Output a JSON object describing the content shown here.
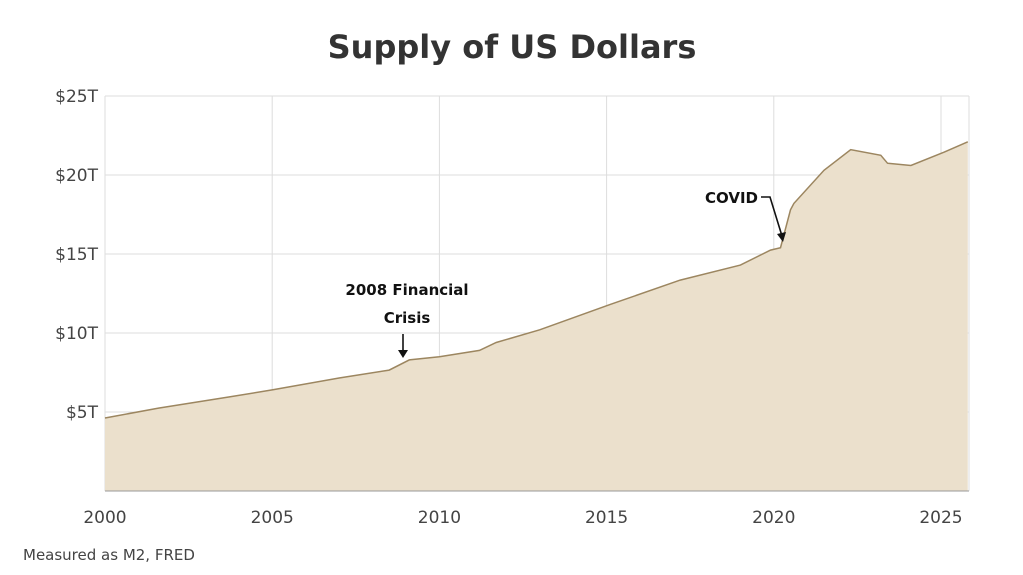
{
  "chart_data": {
    "type": "area",
    "title": "Supply of US Dollars",
    "source_note": "Measured as M2, FRED",
    "xlabel": "",
    "ylabel": "",
    "xlim": [
      2000,
      2025.8
    ],
    "ylim": [
      0,
      25
    ],
    "grid": true,
    "x_ticks": [
      2000,
      2005,
      2010,
      2015,
      2020,
      2025
    ],
    "x_tick_labels": [
      "2000",
      "2005",
      "2010",
      "2015",
      "2020",
      "2025"
    ],
    "y_ticks": [
      5,
      10,
      15,
      20,
      25
    ],
    "y_tick_labels": [
      "$5T",
      "$10T",
      "$15T",
      "$20T",
      "$25T"
    ],
    "colors": {
      "fill": "#ebe0cc",
      "line": "#9c8660",
      "grid": "#dddddd"
    },
    "series": [
      {
        "x": [
          2000,
          2001.6,
          2003.7,
          2005,
          2007,
          2008.5,
          2009.1,
          2010,
          2011.2,
          2011.7,
          2013,
          2015.1,
          2017.2,
          2019,
          2019.9,
          2020.2,
          2020.5,
          2020.6,
          2021.5,
          2022.3,
          2023.2,
          2023.4,
          2024.1,
          2025.1,
          2025.8
        ],
        "y": [
          4.62,
          5.25,
          5.95,
          6.4,
          7.15,
          7.65,
          8.3,
          8.5,
          8.9,
          9.4,
          10.2,
          11.8,
          13.35,
          14.3,
          15.25,
          15.4,
          17.8,
          18.2,
          20.3,
          21.6,
          21.25,
          20.75,
          20.6,
          21.45,
          22.1
        ]
      }
    ],
    "annotations": [
      {
        "lines": [
          "2008 Financial",
          "Crisis"
        ],
        "x": 2008.9,
        "y": 8.1
      },
      {
        "lines": [
          "COVID"
        ],
        "x": 2020.1,
        "y": 15.5
      }
    ]
  }
}
